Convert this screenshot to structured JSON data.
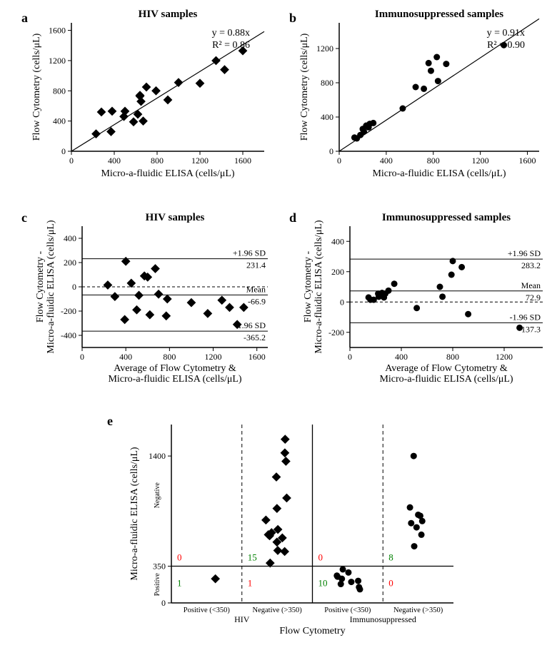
{
  "colors": {
    "bg": "#ffffff",
    "fg": "#000000",
    "green": "#008000",
    "red": "#ff0000"
  },
  "fonts": {
    "title_size": 15,
    "label_size": 18,
    "axis_size": 14,
    "tick_size": 12,
    "annot_size": 13
  },
  "panel_a": {
    "label": "a",
    "title": "HIV samples",
    "type": "scatter",
    "xlabel": "Micro-a-fluidic ELISA (cells/μL)",
    "ylabel": "Flow Cytometry (cells/μL)",
    "xlim": [
      0,
      1800
    ],
    "ylim": [
      0,
      1700
    ],
    "xticks": [
      0,
      400,
      800,
      1200,
      1600
    ],
    "yticks": [
      0,
      400,
      800,
      1200,
      1600
    ],
    "marker": "diamond",
    "marker_size": 9,
    "marker_color": "#000000",
    "line_slope": 0.88,
    "line_color": "#000000",
    "line_width": 1.2,
    "eq1": "y = 0.88x",
    "eq2": "R² = 0.86",
    "points": [
      [
        230,
        230
      ],
      [
        280,
        520
      ],
      [
        380,
        530
      ],
      [
        370,
        260
      ],
      [
        490,
        460
      ],
      [
        500,
        530
      ],
      [
        580,
        390
      ],
      [
        620,
        490
      ],
      [
        640,
        730
      ],
      [
        650,
        660
      ],
      [
        640,
        740
      ],
      [
        700,
        850
      ],
      [
        670,
        400
      ],
      [
        790,
        800
      ],
      [
        900,
        680
      ],
      [
        1000,
        910
      ],
      [
        1200,
        900
      ],
      [
        1350,
        1200
      ],
      [
        1430,
        1080
      ],
      [
        1600,
        1330
      ]
    ]
  },
  "panel_b": {
    "label": "b",
    "title": "Immunosuppressed samples",
    "type": "scatter",
    "xlabel": "Micro-a-fluidic ELISA (cells/μL)",
    "ylabel": "Flow Cytometry (cells/μL)",
    "xlim": [
      0,
      1700
    ],
    "ylim": [
      0,
      1500
    ],
    "xticks": [
      0,
      400,
      800,
      1200,
      1600
    ],
    "yticks": [
      0,
      400,
      800,
      1200
    ],
    "marker": "circle",
    "marker_size": 9,
    "marker_color": "#000000",
    "line_slope": 0.91,
    "line_color": "#000000",
    "line_width": 1.2,
    "eq1": "y = 0.91x",
    "eq2": "R² = 0.90",
    "points": [
      [
        130,
        160
      ],
      [
        150,
        150
      ],
      [
        180,
        190
      ],
      [
        200,
        260
      ],
      [
        210,
        230
      ],
      [
        230,
        300
      ],
      [
        250,
        280
      ],
      [
        260,
        320
      ],
      [
        290,
        330
      ],
      [
        540,
        500
      ],
      [
        650,
        750
      ],
      [
        720,
        730
      ],
      [
        760,
        1030
      ],
      [
        780,
        940
      ],
      [
        830,
        1100
      ],
      [
        840,
        820
      ],
      [
        910,
        1020
      ],
      [
        1400,
        1240
      ]
    ]
  },
  "panel_c": {
    "label": "c",
    "title": "HIV samples",
    "type": "bland-altman",
    "xlabel": "Average of Flow Cytometry &\nMicro-a-fluidic ELISA (cells/μL)",
    "ylabel": "Flow Cytometry -\nMicro-a-fluidic ELISA (cells/μL)",
    "xlim": [
      0,
      1700
    ],
    "ylim": [
      -500,
      500
    ],
    "xticks": [
      0,
      400,
      800,
      1200,
      1600
    ],
    "yticks": [
      -400,
      -200,
      0,
      200,
      400
    ],
    "marker": "diamond",
    "marker_size": 9,
    "marker_color": "#000000",
    "mean": -66.9,
    "upper": 231.4,
    "lower": -365.2,
    "mean_label": "Mean",
    "upper_label": "+1.96 SD",
    "lower_label": "-1.96 SD",
    "points": [
      [
        235,
        15
      ],
      [
        300,
        -80
      ],
      [
        390,
        -270
      ],
      [
        400,
        210
      ],
      [
        450,
        30
      ],
      [
        500,
        -190
      ],
      [
        520,
        -70
      ],
      [
        570,
        90
      ],
      [
        600,
        80
      ],
      [
        620,
        -230
      ],
      [
        670,
        150
      ],
      [
        700,
        -60
      ],
      [
        770,
        -240
      ],
      [
        780,
        -100
      ],
      [
        1000,
        -130
      ],
      [
        1150,
        -220
      ],
      [
        1280,
        -110
      ],
      [
        1350,
        -170
      ],
      [
        1420,
        -310
      ],
      [
        1480,
        -170
      ]
    ]
  },
  "panel_d": {
    "label": "d",
    "title": "Immunosuppressed samples",
    "type": "bland-altman",
    "xlabel": "Average of Flow Cytometry &\nMicro-a-fluidic ELISA (cells/μL)",
    "ylabel": "Flow Cytometry -\nMicro-a-fluidic ELISA (cells/μL)",
    "xlim": [
      0,
      1500
    ],
    "ylim": [
      -300,
      500
    ],
    "xticks": [
      0,
      400,
      800,
      1200
    ],
    "yticks": [
      -200,
      0,
      200,
      400
    ],
    "marker": "circle",
    "marker_size": 9,
    "marker_color": "#000000",
    "mean": 72.9,
    "upper": 283.2,
    "lower": -137.3,
    "mean_label": "Mean",
    "upper_label": "+1.96 SD",
    "lower_label": "-1.96 SD",
    "points": [
      [
        145,
        30
      ],
      [
        160,
        15
      ],
      [
        185,
        15
      ],
      [
        220,
        55
      ],
      [
        225,
        35
      ],
      [
        250,
        60
      ],
      [
        265,
        30
      ],
      [
        275,
        55
      ],
      [
        300,
        75
      ],
      [
        345,
        120
      ],
      [
        520,
        -40
      ],
      [
        700,
        100
      ],
      [
        720,
        35
      ],
      [
        790,
        180
      ],
      [
        800,
        270
      ],
      [
        870,
        230
      ],
      [
        920,
        -80
      ],
      [
        1320,
        -170
      ]
    ]
  },
  "panel_e": {
    "label": "e",
    "type": "classification",
    "xlabel": "Flow Cytometry",
    "ylabel": "Micro-a-fluidic ELISA (cells/μL)",
    "ylim": [
      0,
      1700
    ],
    "yticks": [
      0,
      350,
      1400
    ],
    "threshold": 350,
    "cat_labels": [
      "Positive (<350)",
      "Negative (>350)",
      "Positive (<350)",
      "Negative (>350)"
    ],
    "group_labels": [
      "HIV",
      "Immunosuppressed"
    ],
    "side_labels": [
      "Positive",
      "Negative"
    ],
    "quadrant_counts": [
      {
        "x": 1,
        "y_region": "neg",
        "val": "0",
        "color": "red"
      },
      {
        "x": 2,
        "y_region": "neg",
        "val": "15",
        "color": "green"
      },
      {
        "x": 3,
        "y_region": "neg",
        "val": "0",
        "color": "red"
      },
      {
        "x": 4,
        "y_region": "neg",
        "val": "8",
        "color": "green"
      },
      {
        "x": 1,
        "y_region": "pos",
        "val": "1",
        "color": "green"
      },
      {
        "x": 2,
        "y_region": "pos",
        "val": "1",
        "color": "red"
      },
      {
        "x": 3,
        "y_region": "pos",
        "val": "10",
        "color": "green"
      },
      {
        "x": 4,
        "y_region": "pos",
        "val": "0",
        "color": "red"
      }
    ],
    "hiv_points": [
      [
        1,
        230
      ],
      [
        2,
        380
      ],
      [
        2,
        490
      ],
      [
        2,
        500
      ],
      [
        2,
        580
      ],
      [
        2,
        620
      ],
      [
        2,
        640
      ],
      [
        2,
        650
      ],
      [
        2,
        670
      ],
      [
        2,
        700
      ],
      [
        2,
        790
      ],
      [
        2,
        900
      ],
      [
        2,
        1000
      ],
      [
        2,
        1200
      ],
      [
        2,
        1350
      ],
      [
        2,
        1430
      ],
      [
        2,
        1560
      ]
    ],
    "imm_points": [
      [
        3,
        130
      ],
      [
        3,
        150
      ],
      [
        3,
        180
      ],
      [
        3,
        200
      ],
      [
        3,
        210
      ],
      [
        3,
        230
      ],
      [
        3,
        250
      ],
      [
        3,
        260
      ],
      [
        3,
        290
      ],
      [
        3,
        320
      ],
      [
        4,
        540
      ],
      [
        4,
        650
      ],
      [
        4,
        720
      ],
      [
        4,
        760
      ],
      [
        4,
        780
      ],
      [
        4,
        830
      ],
      [
        4,
        840
      ],
      [
        4,
        910
      ],
      [
        4,
        1400
      ]
    ]
  }
}
